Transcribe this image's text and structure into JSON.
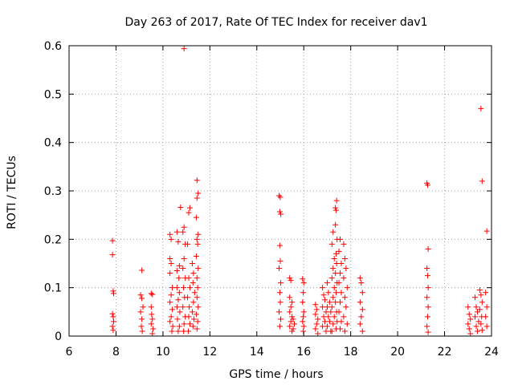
{
  "chart_data": {
    "type": "scatter",
    "title": "Day 263 of 2017, Rate Of TEC Index for receiver dav1",
    "xlabel": "GPS time / hours",
    "ylabel": "ROTI / TECUs",
    "xlim": [
      6,
      24
    ],
    "ylim": [
      0,
      0.6
    ],
    "x_ticks": [
      6,
      8,
      10,
      12,
      14,
      16,
      18,
      20,
      22,
      24
    ],
    "y_ticks": [
      0,
      0.1,
      0.2,
      0.3,
      0.4,
      0.5,
      0.6
    ],
    "y_tick_labels": [
      "0",
      "0.1",
      "0.2",
      "0.3",
      "0.4",
      "0.5",
      "0.6"
    ],
    "grid": true,
    "marker": "+",
    "marker_color": "#ff0000",
    "series": [
      {
        "name": "ROTI",
        "points": [
          [
            7.85,
            0.197
          ],
          [
            7.85,
            0.168
          ],
          [
            7.88,
            0.093
          ],
          [
            7.9,
            0.088
          ],
          [
            7.85,
            0.046
          ],
          [
            7.88,
            0.04
          ],
          [
            7.9,
            0.03
          ],
          [
            7.85,
            0.02
          ],
          [
            7.88,
            0.012
          ],
          [
            9.1,
            0.136
          ],
          [
            9.05,
            0.085
          ],
          [
            9.1,
            0.078
          ],
          [
            9.15,
            0.06
          ],
          [
            9.05,
            0.05
          ],
          [
            9.1,
            0.035
          ],
          [
            9.08,
            0.02
          ],
          [
            9.12,
            0.01
          ],
          [
            9.5,
            0.088
          ],
          [
            9.55,
            0.086
          ],
          [
            9.5,
            0.06
          ],
          [
            9.52,
            0.045
          ],
          [
            9.55,
            0.035
          ],
          [
            9.5,
            0.025
          ],
          [
            9.58,
            0.015
          ],
          [
            9.55,
            0.005
          ],
          [
            10.3,
            0.21
          ],
          [
            10.35,
            0.2
          ],
          [
            10.3,
            0.16
          ],
          [
            10.35,
            0.15
          ],
          [
            10.3,
            0.13
          ],
          [
            10.4,
            0.1
          ],
          [
            10.35,
            0.085
          ],
          [
            10.3,
            0.07
          ],
          [
            10.4,
            0.055
          ],
          [
            10.35,
            0.04
          ],
          [
            10.3,
            0.03
          ],
          [
            10.42,
            0.02
          ],
          [
            10.38,
            0.01
          ],
          [
            10.6,
            0.215
          ],
          [
            10.65,
            0.195
          ],
          [
            10.7,
            0.145
          ],
          [
            10.6,
            0.135
          ],
          [
            10.68,
            0.12
          ],
          [
            10.6,
            0.1
          ],
          [
            10.7,
            0.09
          ],
          [
            10.65,
            0.075
          ],
          [
            10.6,
            0.06
          ],
          [
            10.72,
            0.05
          ],
          [
            10.62,
            0.035
          ],
          [
            10.7,
            0.02
          ],
          [
            10.65,
            0.01
          ],
          [
            10.75,
            0.266
          ],
          [
            10.9,
            0.594
          ],
          [
            10.9,
            0.225
          ],
          [
            10.85,
            0.215
          ],
          [
            10.95,
            0.19
          ],
          [
            10.9,
            0.16
          ],
          [
            10.85,
            0.14
          ],
          [
            10.95,
            0.12
          ],
          [
            10.88,
            0.1
          ],
          [
            10.92,
            0.08
          ],
          [
            10.85,
            0.06
          ],
          [
            10.95,
            0.04
          ],
          [
            10.9,
            0.025
          ],
          [
            10.88,
            0.01
          ],
          [
            11.1,
            0.255
          ],
          [
            11.15,
            0.265
          ],
          [
            11.05,
            0.19
          ],
          [
            11.1,
            0.12
          ],
          [
            11.15,
            0.1
          ],
          [
            11.05,
            0.08
          ],
          [
            11.12,
            0.06
          ],
          [
            11.1,
            0.04
          ],
          [
            11.15,
            0.025
          ],
          [
            11.08,
            0.01
          ],
          [
            11.25,
            0.15
          ],
          [
            11.3,
            0.13
          ],
          [
            11.28,
            0.11
          ],
          [
            11.35,
            0.09
          ],
          [
            11.3,
            0.07
          ],
          [
            11.25,
            0.05
          ],
          [
            11.32,
            0.035
          ],
          [
            11.28,
            0.02
          ],
          [
            11.45,
            0.322
          ],
          [
            11.5,
            0.295
          ],
          [
            11.45,
            0.285
          ],
          [
            11.42,
            0.245
          ],
          [
            11.5,
            0.21
          ],
          [
            11.45,
            0.2
          ],
          [
            11.48,
            0.19
          ],
          [
            11.42,
            0.165
          ],
          [
            11.5,
            0.14
          ],
          [
            11.45,
            0.12
          ],
          [
            11.48,
            0.1
          ],
          [
            11.45,
            0.08
          ],
          [
            11.5,
            0.06
          ],
          [
            11.42,
            0.045
          ],
          [
            11.48,
            0.03
          ],
          [
            11.45,
            0.015
          ],
          [
            14.95,
            0.29
          ],
          [
            15.0,
            0.287
          ],
          [
            14.98,
            0.257
          ],
          [
            15.02,
            0.252
          ],
          [
            14.98,
            0.187
          ],
          [
            15.0,
            0.155
          ],
          [
            14.95,
            0.14
          ],
          [
            15.02,
            0.11
          ],
          [
            14.98,
            0.09
          ],
          [
            15.0,
            0.07
          ],
          [
            14.95,
            0.05
          ],
          [
            15.02,
            0.035
          ],
          [
            14.98,
            0.02
          ],
          [
            15.4,
            0.12
          ],
          [
            15.45,
            0.115
          ],
          [
            15.4,
            0.08
          ],
          [
            15.5,
            0.07
          ],
          [
            15.45,
            0.06
          ],
          [
            15.4,
            0.05
          ],
          [
            15.5,
            0.04
          ],
          [
            15.45,
            0.03
          ],
          [
            15.4,
            0.02
          ],
          [
            15.5,
            0.01
          ],
          [
            15.55,
            0.035
          ],
          [
            15.6,
            0.025
          ],
          [
            15.55,
            0.015
          ],
          [
            15.95,
            0.118
          ],
          [
            16.0,
            0.11
          ],
          [
            15.98,
            0.09
          ],
          [
            15.95,
            0.07
          ],
          [
            16.0,
            0.05
          ],
          [
            15.98,
            0.04
          ],
          [
            15.95,
            0.03
          ],
          [
            16.0,
            0.02
          ],
          [
            15.98,
            0.01
          ],
          [
            16.5,
            0.065
          ],
          [
            16.55,
            0.055
          ],
          [
            16.5,
            0.045
          ],
          [
            16.6,
            0.035
          ],
          [
            16.55,
            0.025
          ],
          [
            16.5,
            0.015
          ],
          [
            16.6,
            0.005
          ],
          [
            16.8,
            0.1
          ],
          [
            16.85,
            0.085
          ],
          [
            16.9,
            0.075
          ],
          [
            16.8,
            0.06
          ],
          [
            16.95,
            0.05
          ],
          [
            16.85,
            0.04
          ],
          [
            16.9,
            0.03
          ],
          [
            16.8,
            0.02
          ],
          [
            16.95,
            0.01
          ],
          [
            17.0,
            0.11
          ],
          [
            17.05,
            0.09
          ],
          [
            17.1,
            0.07
          ],
          [
            17.0,
            0.06
          ],
          [
            17.15,
            0.05
          ],
          [
            17.05,
            0.04
          ],
          [
            17.1,
            0.03
          ],
          [
            17.0,
            0.02
          ],
          [
            17.15,
            0.01
          ],
          [
            17.25,
            0.215
          ],
          [
            17.2,
            0.19
          ],
          [
            17.3,
            0.16
          ],
          [
            17.25,
            0.14
          ],
          [
            17.2,
            0.12
          ],
          [
            17.3,
            0.1
          ],
          [
            17.25,
            0.08
          ],
          [
            17.2,
            0.06
          ],
          [
            17.3,
            0.04
          ],
          [
            17.25,
            0.025
          ],
          [
            17.2,
            0.01
          ],
          [
            17.35,
            0.265
          ],
          [
            17.4,
            0.28
          ],
          [
            17.38,
            0.26
          ],
          [
            17.35,
            0.23
          ],
          [
            17.42,
            0.2
          ],
          [
            17.38,
            0.17
          ],
          [
            17.4,
            0.15
          ],
          [
            17.35,
            0.13
          ],
          [
            17.42,
            0.11
          ],
          [
            17.38,
            0.09
          ],
          [
            17.35,
            0.07
          ],
          [
            17.4,
            0.05
          ],
          [
            17.42,
            0.03
          ],
          [
            17.38,
            0.015
          ],
          [
            17.55,
            0.2
          ],
          [
            17.5,
            0.175
          ],
          [
            17.6,
            0.15
          ],
          [
            17.55,
            0.13
          ],
          [
            17.5,
            0.11
          ],
          [
            17.6,
            0.09
          ],
          [
            17.55,
            0.07
          ],
          [
            17.5,
            0.05
          ],
          [
            17.6,
            0.03
          ],
          [
            17.55,
            0.015
          ],
          [
            17.7,
            0.19
          ],
          [
            17.75,
            0.16
          ],
          [
            17.8,
            0.14
          ],
          [
            17.7,
            0.12
          ],
          [
            17.85,
            0.1
          ],
          [
            17.75,
            0.08
          ],
          [
            17.8,
            0.06
          ],
          [
            17.7,
            0.04
          ],
          [
            17.85,
            0.025
          ],
          [
            17.75,
            0.01
          ],
          [
            18.4,
            0.12
          ],
          [
            18.45,
            0.11
          ],
          [
            18.5,
            0.09
          ],
          [
            18.4,
            0.07
          ],
          [
            18.5,
            0.055
          ],
          [
            18.45,
            0.04
          ],
          [
            18.4,
            0.025
          ],
          [
            18.5,
            0.01
          ],
          [
            21.25,
            0.316
          ],
          [
            21.28,
            0.312
          ],
          [
            21.3,
            0.18
          ],
          [
            21.25,
            0.14
          ],
          [
            21.28,
            0.125
          ],
          [
            21.3,
            0.1
          ],
          [
            21.25,
            0.08
          ],
          [
            21.3,
            0.06
          ],
          [
            21.28,
            0.04
          ],
          [
            21.25,
            0.02
          ],
          [
            21.3,
            0.008
          ],
          [
            23.0,
            0.06
          ],
          [
            23.05,
            0.045
          ],
          [
            23.1,
            0.035
          ],
          [
            23.0,
            0.025
          ],
          [
            23.05,
            0.015
          ],
          [
            23.1,
            0.005
          ],
          [
            23.3,
            0.08
          ],
          [
            23.35,
            0.06
          ],
          [
            23.4,
            0.05
          ],
          [
            23.3,
            0.04
          ],
          [
            23.45,
            0.03
          ],
          [
            23.35,
            0.02
          ],
          [
            23.4,
            0.01
          ],
          [
            23.55,
            0.47
          ],
          [
            23.6,
            0.32
          ],
          [
            23.5,
            0.095
          ],
          [
            23.55,
            0.085
          ],
          [
            23.6,
            0.07
          ],
          [
            23.5,
            0.055
          ],
          [
            23.58,
            0.04
          ],
          [
            23.55,
            0.025
          ],
          [
            23.6,
            0.012
          ],
          [
            23.8,
            0.217
          ],
          [
            23.75,
            0.09
          ],
          [
            23.8,
            0.06
          ],
          [
            23.75,
            0.04
          ],
          [
            23.8,
            0.02
          ]
        ]
      }
    ]
  }
}
